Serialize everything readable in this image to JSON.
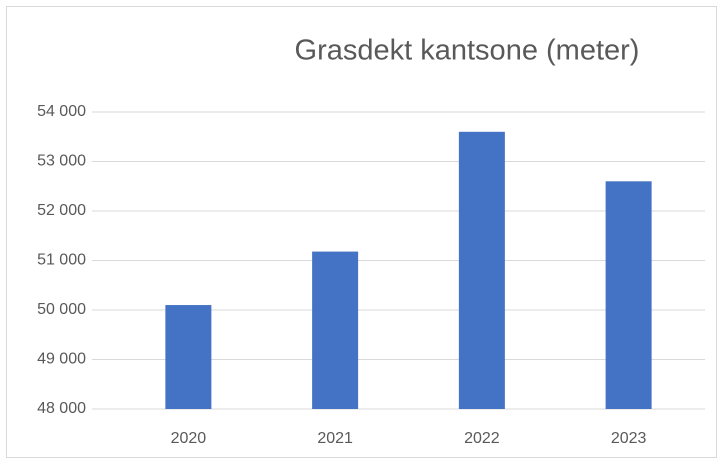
{
  "chart_data": {
    "type": "bar",
    "title": "Grasdekt kantsone (meter)",
    "categories": [
      "2020",
      "2021",
      "2022",
      "2023"
    ],
    "values": [
      50100,
      51180,
      53600,
      52600
    ],
    "color": "#4472c4",
    "ylim": [
      48000,
      54000
    ],
    "yticks": [
      {
        "value": 48000,
        "label": "48 000"
      },
      {
        "value": 49000,
        "label": "49 000"
      },
      {
        "value": 50000,
        "label": "50 000"
      },
      {
        "value": 51000,
        "label": "51 000"
      },
      {
        "value": 52000,
        "label": "52 000"
      },
      {
        "value": 53000,
        "label": "53 000"
      },
      {
        "value": 54000,
        "label": "54 000"
      }
    ],
    "grid": true
  }
}
